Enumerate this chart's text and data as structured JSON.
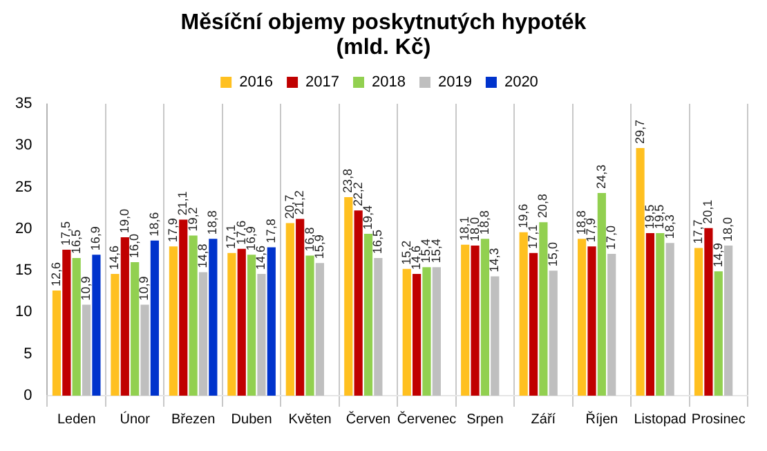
{
  "chart_data": {
    "type": "bar",
    "title": "Měsíční objemy poskytnutých hypoték (mld. Kč)",
    "categories": [
      "Leden",
      "Únor",
      "Březen",
      "Duben",
      "Květen",
      "Červen",
      "Červenec",
      "Srpen",
      "Září",
      "Říjen",
      "Listopad",
      "Prosinec"
    ],
    "series": [
      {
        "name": "2016",
        "color": "#ffc020",
        "values": [
          12.6,
          14.6,
          17.9,
          17.1,
          20.7,
          23.8,
          15.2,
          18.1,
          19.6,
          18.8,
          29.7,
          17.7
        ],
        "value_labels": [
          "12,6",
          "14,6",
          "17,9",
          "17,1",
          "20,7",
          "23,8",
          "15,2",
          "18,1",
          "19,6",
          "18,8",
          "29,7",
          "17,7"
        ]
      },
      {
        "name": "2017",
        "color": "#c00000",
        "values": [
          17.5,
          19.0,
          21.1,
          17.6,
          21.2,
          22.2,
          14.6,
          18.0,
          17.1,
          17.9,
          19.5,
          20.1
        ],
        "value_labels": [
          "17,5",
          "19,0",
          "21,1",
          "17,6",
          "21,2",
          "22,2",
          "14,6",
          "18,0",
          "17,1",
          "17,9",
          "19,5",
          "20,1"
        ]
      },
      {
        "name": "2018",
        "color": "#92d050",
        "values": [
          16.5,
          16.0,
          19.2,
          16.9,
          16.8,
          19.4,
          15.4,
          18.8,
          20.8,
          24.3,
          19.5,
          14.9
        ],
        "value_labels": [
          "16,5",
          "16,0",
          "19,2",
          "16,9",
          "16,8",
          "19,4",
          "15,4",
          "18,8",
          "20,8",
          "24,3",
          "19,5",
          "14,9"
        ]
      },
      {
        "name": "2019",
        "color": "#bfbfbf",
        "values": [
          10.9,
          10.9,
          14.8,
          14.6,
          15.9,
          16.5,
          15.4,
          14.3,
          15.0,
          17.0,
          18.3,
          18.0
        ],
        "value_labels": [
          "10,9",
          "10,9",
          "14,8",
          "14,6",
          "15,9",
          "16,5",
          "15,4",
          "14,3",
          "15,0",
          "17,0",
          "18,3",
          "18,0"
        ]
      },
      {
        "name": "2020",
        "color": "#0033cc",
        "values": [
          16.9,
          18.6,
          18.8,
          17.8,
          null,
          null,
          null,
          null,
          null,
          null,
          null,
          null
        ],
        "value_labels": [
          "16,9",
          "18,6",
          "18,8",
          "17,8",
          null,
          null,
          null,
          null,
          null,
          null,
          null,
          null
        ]
      }
    ],
    "ylim": [
      0,
      35
    ],
    "yticks": [
      0,
      5,
      10,
      15,
      20,
      25,
      30,
      35
    ],
    "grid": "x",
    "legend": "top"
  }
}
